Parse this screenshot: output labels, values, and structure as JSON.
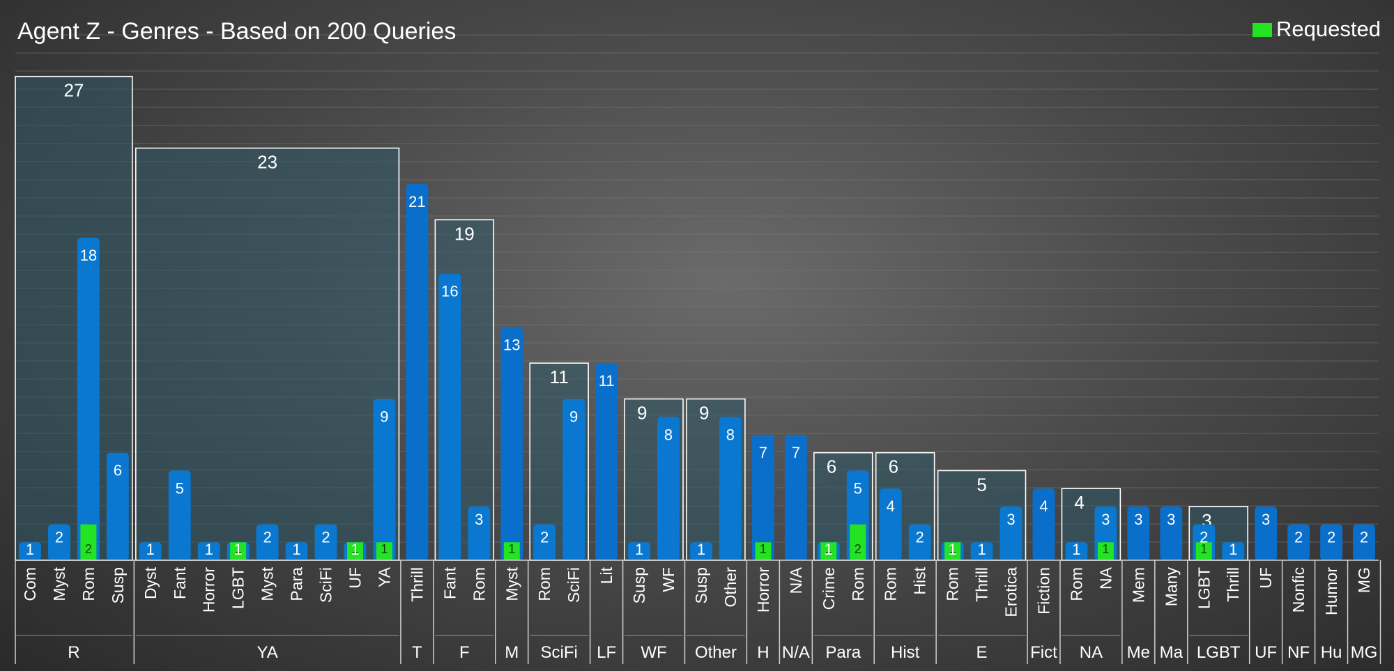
{
  "chart_data": {
    "type": "bar",
    "title": "Agent Z - Genres - Based on 200 Queries",
    "legend": [
      {
        "label": "Requested",
        "color": "#22e422"
      }
    ],
    "legend_position": "top-right",
    "ylim": [
      0,
      28
    ],
    "grid": true,
    "colors": {
      "bar": "#0a78d0",
      "bar_single": "#0a6ecb",
      "requested": "#22e422",
      "group_box_fill": "#2f5866",
      "group_box_stroke": "#ffffff"
    },
    "groups": [
      {
        "label": "R",
        "total": 27,
        "boxed": true,
        "bars": [
          {
            "label": "Com",
            "value": 1,
            "requested": 0
          },
          {
            "label": "Myst",
            "value": 2,
            "requested": 0
          },
          {
            "label": "Rom",
            "value": 18,
            "requested": 2
          },
          {
            "label": "Susp",
            "value": 6,
            "requested": 0
          }
        ]
      },
      {
        "label": "YA",
        "total": 23,
        "boxed": true,
        "bars": [
          {
            "label": "Dyst",
            "value": 1,
            "requested": 0
          },
          {
            "label": "Fant",
            "value": 5,
            "requested": 0
          },
          {
            "label": "Horror",
            "value": 1,
            "requested": 0
          },
          {
            "label": "LGBT",
            "value": 1,
            "requested": 1
          },
          {
            "label": "Myst",
            "value": 2,
            "requested": 0
          },
          {
            "label": "Para",
            "value": 1,
            "requested": 0
          },
          {
            "label": "SciFi",
            "value": 2,
            "requested": 0
          },
          {
            "label": "UF",
            "value": 1,
            "requested": 1
          },
          {
            "label": "YA",
            "value": 9,
            "requested": 1
          }
        ]
      },
      {
        "label": "T",
        "total": 21,
        "boxed": false,
        "bars": [
          {
            "label": "Thrill",
            "value": 21,
            "requested": 0
          }
        ]
      },
      {
        "label": "F",
        "total": 19,
        "boxed": true,
        "bars": [
          {
            "label": "Fant",
            "value": 16,
            "requested": 0
          },
          {
            "label": "Rom",
            "value": 3,
            "requested": 0
          }
        ]
      },
      {
        "label": "M",
        "total": 13,
        "boxed": false,
        "bars": [
          {
            "label": "Myst",
            "value": 13,
            "requested": 1
          }
        ]
      },
      {
        "label": "SciFi",
        "total": 11,
        "boxed": true,
        "bars": [
          {
            "label": "Rom",
            "value": 2,
            "requested": 0
          },
          {
            "label": "SciFi",
            "value": 9,
            "requested": 0
          }
        ]
      },
      {
        "label": "LF",
        "total": 11,
        "boxed": false,
        "bars": [
          {
            "label": "Lit",
            "value": 11,
            "requested": 0
          }
        ]
      },
      {
        "label": "WF",
        "total": 9,
        "boxed": true,
        "bars": [
          {
            "label": "Susp",
            "value": 1,
            "requested": 0
          },
          {
            "label": "WF",
            "value": 8,
            "requested": 0
          }
        ]
      },
      {
        "label": "Other",
        "total": 9,
        "boxed": true,
        "bars": [
          {
            "label": "Susp",
            "value": 1,
            "requested": 0
          },
          {
            "label": "Other",
            "value": 8,
            "requested": 0
          }
        ]
      },
      {
        "label": "H",
        "total": 7,
        "boxed": false,
        "bars": [
          {
            "label": "Horror",
            "value": 7,
            "requested": 1
          }
        ]
      },
      {
        "label": "N/A",
        "total": 7,
        "boxed": false,
        "bars": [
          {
            "label": "N/A",
            "value": 7,
            "requested": 0
          }
        ]
      },
      {
        "label": "Para",
        "total": 6,
        "boxed": true,
        "bars": [
          {
            "label": "Crime",
            "value": 1,
            "requested": 1
          },
          {
            "label": "Rom",
            "value": 5,
            "requested": 2
          }
        ]
      },
      {
        "label": "Hist",
        "total": 6,
        "boxed": true,
        "bars": [
          {
            "label": "Rom",
            "value": 4,
            "requested": 0
          },
          {
            "label": "Hist",
            "value": 2,
            "requested": 0
          }
        ]
      },
      {
        "label": "E",
        "total": 5,
        "boxed": true,
        "bars": [
          {
            "label": "Rom",
            "value": 1,
            "requested": 1
          },
          {
            "label": "Thrill",
            "value": 1,
            "requested": 0
          },
          {
            "label": "Erotica",
            "value": 3,
            "requested": 0
          }
        ]
      },
      {
        "label": "Fict",
        "total": 4,
        "boxed": false,
        "bars": [
          {
            "label": "Fiction",
            "value": 4,
            "requested": 0
          }
        ]
      },
      {
        "label": "NA",
        "total": 4,
        "boxed": true,
        "bars": [
          {
            "label": "Rom",
            "value": 1,
            "requested": 0
          },
          {
            "label": "NA",
            "value": 3,
            "requested": 1
          }
        ]
      },
      {
        "label": "Me",
        "total": 3,
        "boxed": false,
        "bars": [
          {
            "label": "Mem",
            "value": 3,
            "requested": 0
          }
        ]
      },
      {
        "label": "Ma",
        "total": 3,
        "boxed": false,
        "bars": [
          {
            "label": "Many",
            "value": 3,
            "requested": 0
          }
        ]
      },
      {
        "label": "LGBT",
        "total": 3,
        "boxed": true,
        "bars": [
          {
            "label": "LGBT",
            "value": 2,
            "requested": 1
          },
          {
            "label": "Thrill",
            "value": 1,
            "requested": 0
          }
        ]
      },
      {
        "label": "UF",
        "total": 3,
        "boxed": false,
        "bars": [
          {
            "label": "UF",
            "value": 3,
            "requested": 0
          }
        ]
      },
      {
        "label": "NF",
        "total": 2,
        "boxed": false,
        "bars": [
          {
            "label": "Nonfic",
            "value": 2,
            "requested": 0
          }
        ]
      },
      {
        "label": "Hu",
        "total": 2,
        "boxed": false,
        "bars": [
          {
            "label": "Humor",
            "value": 2,
            "requested": 0
          }
        ]
      },
      {
        "label": "MG",
        "total": 2,
        "boxed": false,
        "bars": [
          {
            "label": "MG",
            "value": 2,
            "requested": 0
          }
        ]
      }
    ]
  }
}
